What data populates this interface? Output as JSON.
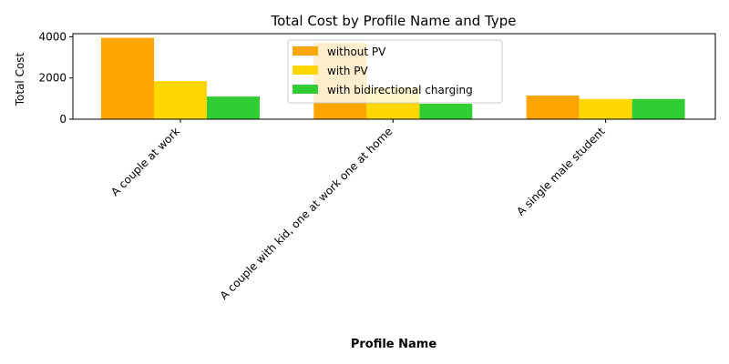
{
  "chart_data": {
    "type": "bar",
    "title": "Total Cost by Profile Name and Type",
    "xlabel": "Profile Name",
    "ylabel": "Total Cost",
    "categories": [
      "A couple at work",
      "A couple with kid, one at work one at home",
      "A single male student"
    ],
    "series": [
      {
        "name": "without PV",
        "color": "#FFA500",
        "values": [
          3950,
          3700,
          1150
        ]
      },
      {
        "name": "with PV",
        "color": "#FFD700",
        "values": [
          1850,
          1550,
          980
        ]
      },
      {
        "name": "with bidirectional charging",
        "color": "#32CD32",
        "values": [
          1100,
          750,
          980
        ]
      }
    ],
    "ylim": [
      0,
      4150
    ],
    "yticks": [
      0,
      2000,
      4000
    ],
    "legend": "top-center",
    "grid": false
  }
}
